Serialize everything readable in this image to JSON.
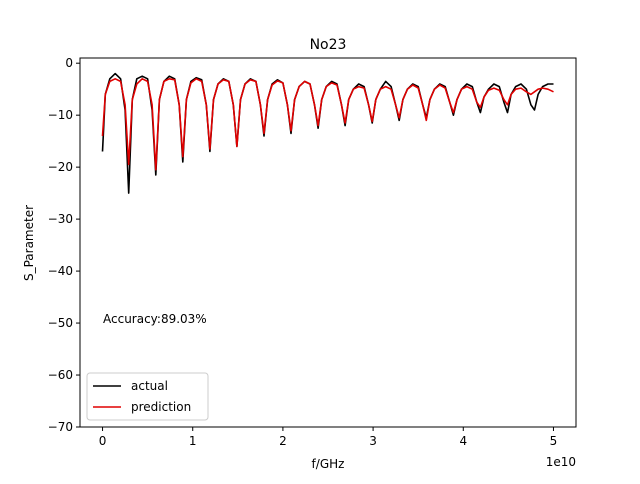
{
  "chart_data": {
    "type": "line",
    "title": "No23",
    "xlabel": "f/GHz",
    "ylabel": "S_Parameter",
    "x_offset_label": "1e10",
    "xlim": [
      -2.5,
      52.5
    ],
    "ylim": [
      -70,
      1
    ],
    "xticks": [
      0,
      1,
      2,
      3,
      4,
      5
    ],
    "yticks": [
      0,
      -10,
      -20,
      -30,
      -40,
      -50,
      -60,
      -70
    ],
    "grid": false,
    "legend_position": "lower-left",
    "annotation": "Accuracy:89.03%",
    "series": [
      {
        "name": "actual",
        "color": "#000000",
        "x": [
          0.0,
          0.3,
          0.8,
          1.4,
          2.0,
          2.5,
          2.9,
          3.3,
          3.8,
          4.4,
          5.0,
          5.5,
          5.9,
          6.3,
          6.8,
          7.4,
          8.0,
          8.5,
          8.9,
          9.3,
          9.8,
          10.4,
          11.0,
          11.5,
          11.9,
          12.3,
          12.8,
          13.4,
          14.0,
          14.5,
          14.9,
          15.3,
          15.8,
          16.4,
          17.0,
          17.5,
          17.9,
          18.3,
          18.8,
          19.4,
          20.0,
          20.5,
          20.9,
          21.3,
          21.8,
          22.4,
          23.0,
          23.5,
          23.9,
          24.3,
          24.8,
          25.4,
          26.0,
          26.5,
          26.9,
          27.3,
          27.8,
          28.4,
          29.0,
          29.5,
          29.9,
          30.3,
          30.8,
          31.4,
          32.0,
          32.5,
          32.9,
          33.3,
          33.8,
          34.4,
          35.0,
          35.5,
          35.9,
          36.3,
          36.8,
          37.4,
          38.0,
          38.5,
          38.9,
          39.3,
          39.8,
          40.4,
          41.0,
          41.5,
          41.9,
          42.3,
          42.8,
          43.4,
          44.0,
          44.5,
          44.9,
          45.3,
          45.8,
          46.4,
          47.0,
          47.5,
          47.9,
          48.3,
          48.8,
          49.4,
          50.0
        ],
        "y": [
          -17,
          -6,
          -3,
          -2,
          -3,
          -9,
          -25,
          -7,
          -3,
          -2.5,
          -3,
          -9,
          -21.5,
          -7,
          -3.5,
          -2.5,
          -3,
          -8,
          -19,
          -7,
          -3.5,
          -2.8,
          -3.2,
          -8,
          -17,
          -7,
          -4,
          -3,
          -3.5,
          -8,
          -16,
          -7,
          -4,
          -3,
          -3.5,
          -8,
          -14,
          -7,
          -4,
          -3.2,
          -3.8,
          -8,
          -13.5,
          -7,
          -4.5,
          -3.5,
          -4,
          -8,
          -12.5,
          -7,
          -4.5,
          -3.5,
          -4,
          -8,
          -12,
          -7,
          -5,
          -4,
          -4.5,
          -8,
          -11.5,
          -7,
          -5,
          -3.5,
          -4.5,
          -8,
          -11,
          -7,
          -5,
          -4,
          -4.5,
          -8,
          -10.5,
          -7,
          -5,
          -4,
          -4.5,
          -7.5,
          -10,
          -7,
          -5,
          -4,
          -4.5,
          -7.5,
          -9.5,
          -6.5,
          -5,
          -4,
          -4.5,
          -7.5,
          -9.5,
          -6,
          -4.5,
          -4,
          -5,
          -8,
          -9,
          -6,
          -4.5,
          -4,
          -4
        ]
      },
      {
        "name": "prediction",
        "color": "#e00000",
        "x": [
          0.0,
          0.3,
          0.8,
          1.4,
          2.0,
          2.5,
          2.9,
          3.3,
          3.8,
          4.4,
          5.0,
          5.5,
          5.9,
          6.3,
          6.8,
          7.4,
          8.0,
          8.5,
          8.9,
          9.3,
          9.8,
          10.4,
          11.0,
          11.5,
          11.9,
          12.3,
          12.8,
          13.4,
          14.0,
          14.5,
          14.9,
          15.3,
          15.8,
          16.4,
          17.0,
          17.5,
          17.9,
          18.3,
          18.8,
          19.4,
          20.0,
          20.5,
          20.9,
          21.3,
          21.8,
          22.4,
          23.0,
          23.5,
          23.9,
          24.3,
          24.8,
          25.4,
          26.0,
          26.5,
          26.9,
          27.3,
          27.8,
          28.4,
          29.0,
          29.5,
          29.9,
          30.3,
          30.8,
          31.4,
          32.0,
          32.5,
          32.9,
          33.3,
          33.8,
          34.4,
          35.0,
          35.5,
          35.9,
          36.3,
          36.8,
          37.4,
          38.0,
          38.5,
          38.9,
          39.3,
          39.8,
          40.4,
          41.0,
          41.5,
          41.9,
          42.3,
          42.8,
          43.4,
          44.0,
          44.5,
          44.9,
          45.3,
          45.8,
          46.4,
          47.0,
          47.5,
          47.9,
          48.3,
          48.8,
          49.4,
          50.0
        ],
        "y": [
          -14,
          -6,
          -3.5,
          -3,
          -3.5,
          -8,
          -19.5,
          -7,
          -4,
          -3,
          -3.5,
          -8,
          -20.5,
          -7,
          -3.5,
          -3,
          -3.2,
          -8,
          -18,
          -7,
          -3.8,
          -3,
          -3.5,
          -8,
          -16.5,
          -7,
          -4,
          -3.2,
          -3.5,
          -8,
          -16,
          -7,
          -4,
          -3.2,
          -3.5,
          -8,
          -13.5,
          -7,
          -4.2,
          -3.4,
          -3.8,
          -8,
          -13,
          -7,
          -4.5,
          -3.5,
          -4,
          -8,
          -12,
          -7,
          -4.5,
          -3.8,
          -4.2,
          -8,
          -11.5,
          -7,
          -5,
          -4.5,
          -4.8,
          -8,
          -11.2,
          -7,
          -5,
          -4.5,
          -5,
          -8,
          -10.5,
          -7,
          -5,
          -4.2,
          -4.8,
          -8,
          -11,
          -7,
          -5,
          -4.2,
          -4.8,
          -7.5,
          -9.5,
          -7,
          -5,
          -4.5,
          -5,
          -7.5,
          -8.5,
          -6.5,
          -5.2,
          -4.8,
          -5.2,
          -7,
          -8,
          -6,
          -5,
          -4.8,
          -5.5,
          -6,
          -5.5,
          -5,
          -4.8,
          -5,
          -5.5
        ]
      }
    ]
  }
}
